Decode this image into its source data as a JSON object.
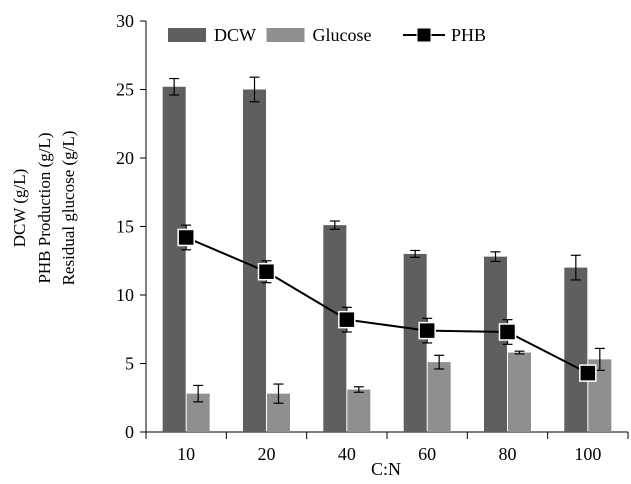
{
  "chart_data": {
    "type": "bar",
    "categories": [
      "10",
      "20",
      "40",
      "60",
      "80",
      "100"
    ],
    "xlabel": "C:N",
    "ylabel_lines": [
      "DCW (g/L)",
      "PHB Production (g/L)",
      "Residual glucose (g/L)"
    ],
    "ylim": [
      0,
      30
    ],
    "yticks": [
      "0",
      "5",
      "10",
      "15",
      "20",
      "25",
      "30"
    ],
    "grid": false,
    "legend_position": "top",
    "series": [
      {
        "name": "DCW",
        "kind": "bar",
        "color": "#5f5f5f",
        "values": [
          25.2,
          25.0,
          15.1,
          13.0,
          12.8,
          12.0
        ],
        "errors": [
          0.6,
          0.9,
          0.3,
          0.25,
          0.35,
          0.9
        ]
      },
      {
        "name": "Glucose",
        "kind": "bar",
        "color": "#8f8f8f",
        "values": [
          2.8,
          2.8,
          3.1,
          5.1,
          5.8,
          5.3
        ],
        "errors": [
          0.6,
          0.7,
          0.2,
          0.5,
          0.1,
          0.8
        ]
      },
      {
        "name": "PHB",
        "kind": "line",
        "color": "#000000",
        "values": [
          14.2,
          11.7,
          8.2,
          7.4,
          7.3,
          4.3
        ],
        "errors": [
          0.9,
          0.8,
          0.9,
          0.9,
          0.9,
          0.3
        ]
      }
    ]
  }
}
